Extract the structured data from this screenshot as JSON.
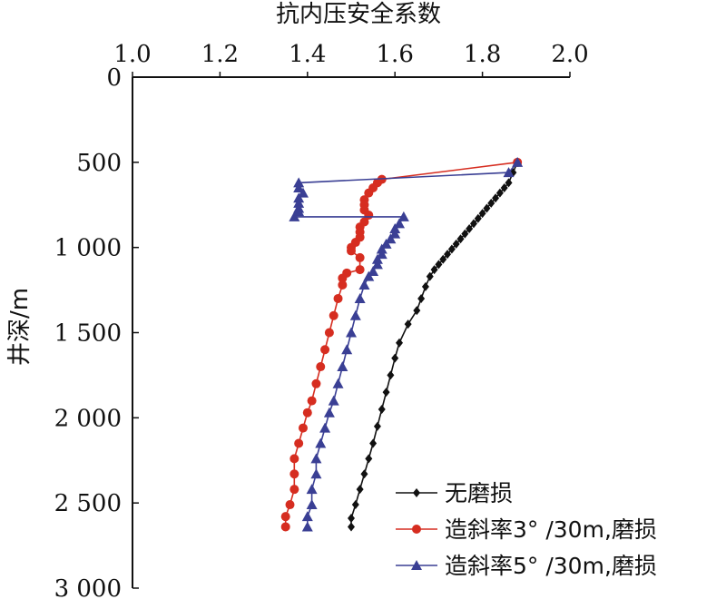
{
  "chart_data": {
    "type": "line",
    "title": "抗内压安全系数",
    "ylabel": "井深/m",
    "xlim": [
      1.0,
      2.0
    ],
    "ylim": [
      0,
      3000
    ],
    "y_inverted": true,
    "x_axis_position": "top",
    "x_ticks": [
      1.0,
      1.2,
      1.4,
      1.6,
      1.8,
      2.0
    ],
    "x_tick_labels": [
      "1.0",
      "1.2",
      "1.4",
      "1.6",
      "1.8",
      "2.0"
    ],
    "y_ticks": [
      0,
      500,
      1000,
      1500,
      2000,
      2500,
      3000
    ],
    "y_tick_labels": [
      "0",
      "500",
      "1 000",
      "1 500",
      "2 000",
      "2 500",
      "3 000"
    ],
    "legend_position": "bottom-right",
    "series": [
      {
        "name": "无磨损",
        "color": "#111111",
        "marker": "diamond",
        "points": [
          [
            1.88,
            500
          ],
          [
            1.87,
            560
          ],
          [
            1.86,
            620
          ],
          [
            1.85,
            650
          ],
          [
            1.84,
            680
          ],
          [
            1.83,
            710
          ],
          [
            1.82,
            740
          ],
          [
            1.81,
            770
          ],
          [
            1.8,
            800
          ],
          [
            1.79,
            830
          ],
          [
            1.78,
            860
          ],
          [
            1.77,
            890
          ],
          [
            1.76,
            920
          ],
          [
            1.75,
            950
          ],
          [
            1.74,
            980
          ],
          [
            1.73,
            1010
          ],
          [
            1.72,
            1040
          ],
          [
            1.71,
            1070
          ],
          [
            1.7,
            1100
          ],
          [
            1.69,
            1130
          ],
          [
            1.68,
            1170
          ],
          [
            1.67,
            1230
          ],
          [
            1.66,
            1300
          ],
          [
            1.65,
            1370
          ],
          [
            1.63,
            1450
          ],
          [
            1.61,
            1560
          ],
          [
            1.6,
            1650
          ],
          [
            1.59,
            1750
          ],
          [
            1.58,
            1850
          ],
          [
            1.57,
            1950
          ],
          [
            1.56,
            2050
          ],
          [
            1.55,
            2150
          ],
          [
            1.54,
            2240
          ],
          [
            1.53,
            2330
          ],
          [
            1.52,
            2420
          ],
          [
            1.51,
            2510
          ],
          [
            1.5,
            2590
          ],
          [
            1.5,
            2640
          ]
        ]
      },
      {
        "name": "造斜率3° /30m,磨损",
        "color": "#d62d20",
        "marker": "circle",
        "points": [
          [
            1.88,
            500
          ],
          [
            1.57,
            600
          ],
          [
            1.56,
            620
          ],
          [
            1.55,
            650
          ],
          [
            1.54,
            680
          ],
          [
            1.53,
            720
          ],
          [
            1.53,
            750
          ],
          [
            1.53,
            780
          ],
          [
            1.54,
            810
          ],
          [
            1.53,
            850
          ],
          [
            1.52,
            880
          ],
          [
            1.52,
            910
          ],
          [
            1.52,
            940
          ],
          [
            1.51,
            970
          ],
          [
            1.5,
            1000
          ],
          [
            1.5,
            1020
          ],
          [
            1.52,
            1060
          ],
          [
            1.52,
            1130
          ],
          [
            1.49,
            1150
          ],
          [
            1.48,
            1180
          ],
          [
            1.48,
            1220
          ],
          [
            1.47,
            1300
          ],
          [
            1.46,
            1400
          ],
          [
            1.45,
            1500
          ],
          [
            1.44,
            1600
          ],
          [
            1.43,
            1700
          ],
          [
            1.42,
            1800
          ],
          [
            1.41,
            1900
          ],
          [
            1.4,
            1970
          ],
          [
            1.39,
            2060
          ],
          [
            1.38,
            2150
          ],
          [
            1.37,
            2240
          ],
          [
            1.37,
            2330
          ],
          [
            1.37,
            2420
          ],
          [
            1.36,
            2510
          ],
          [
            1.35,
            2580
          ],
          [
            1.35,
            2640
          ]
        ]
      },
      {
        "name": "造斜率5° /30m,磨损",
        "color": "#3a3f94",
        "marker": "triangle",
        "points": [
          [
            1.88,
            500
          ],
          [
            1.86,
            560
          ],
          [
            1.38,
            620
          ],
          [
            1.38,
            650
          ],
          [
            1.39,
            680
          ],
          [
            1.38,
            710
          ],
          [
            1.38,
            740
          ],
          [
            1.38,
            770
          ],
          [
            1.38,
            790
          ],
          [
            1.37,
            820
          ],
          [
            1.62,
            820
          ],
          [
            1.61,
            860
          ],
          [
            1.6,
            890
          ],
          [
            1.6,
            920
          ],
          [
            1.59,
            950
          ],
          [
            1.58,
            980
          ],
          [
            1.57,
            1010
          ],
          [
            1.57,
            1040
          ],
          [
            1.56,
            1070
          ],
          [
            1.56,
            1100
          ],
          [
            1.55,
            1140
          ],
          [
            1.54,
            1170
          ],
          [
            1.53,
            1220
          ],
          [
            1.52,
            1300
          ],
          [
            1.51,
            1400
          ],
          [
            1.5,
            1500
          ],
          [
            1.49,
            1600
          ],
          [
            1.48,
            1700
          ],
          [
            1.47,
            1800
          ],
          [
            1.46,
            1900
          ],
          [
            1.45,
            1970
          ],
          [
            1.44,
            2060
          ],
          [
            1.43,
            2150
          ],
          [
            1.42,
            2240
          ],
          [
            1.42,
            2330
          ],
          [
            1.41,
            2420
          ],
          [
            1.41,
            2510
          ],
          [
            1.4,
            2580
          ],
          [
            1.4,
            2640
          ]
        ]
      }
    ]
  }
}
